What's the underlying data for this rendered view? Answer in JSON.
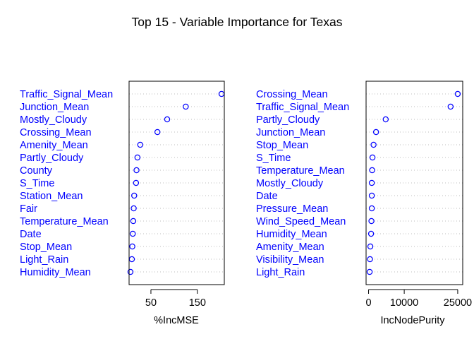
{
  "title": "Top 15 - Variable Importance for Texas",
  "colors": {
    "label": "#0000ff",
    "point": "#0000ff",
    "frame": "#000000",
    "grid": "#bebebe",
    "text": "#000000"
  },
  "chart_data": [
    {
      "type": "scatter",
      "style": "dotchart",
      "xlabel": "%IncMSE",
      "xlim": [
        3,
        208
      ],
      "xticks": [
        50,
        150
      ],
      "categories": [
        "Traffic_Signal_Mean",
        "Junction_Mean",
        "Mostly_Cloudy",
        "Crossing_Mean",
        "Amenity_Mean",
        "Partly_Cloudy",
        "County",
        "S_Time",
        "Station_Mean",
        "Fair",
        "Temperature_Mean",
        "Date",
        "Stop_Mean",
        "Light_Rain",
        "Humidity_Mean"
      ],
      "values": [
        202,
        125,
        85,
        64,
        27,
        21,
        19,
        18,
        14,
        13,
        12,
        11,
        10,
        9,
        6
      ]
    },
    {
      "type": "scatter",
      "style": "dotchart",
      "xlabel": "IncNodePurity",
      "xticks": [
        0,
        10000,
        25000
      ],
      "xlim": [
        -700,
        26400
      ],
      "categories": [
        "Crossing_Mean",
        "Traffic_Signal_Mean",
        "Partly_Cloudy",
        "Junction_Mean",
        "Stop_Mean",
        "S_Time",
        "Temperature_Mean",
        "Mostly_Cloudy",
        "Date",
        "Pressure_Mean",
        "Wind_Speed_Mean",
        "Humidity_Mean",
        "Amenity_Mean",
        "Visibility_Mean",
        "Light_Rain"
      ],
      "values": [
        25000,
        23000,
        4800,
        2100,
        1400,
        1100,
        1000,
        900,
        900,
        900,
        800,
        700,
        500,
        400,
        300
      ]
    }
  ]
}
